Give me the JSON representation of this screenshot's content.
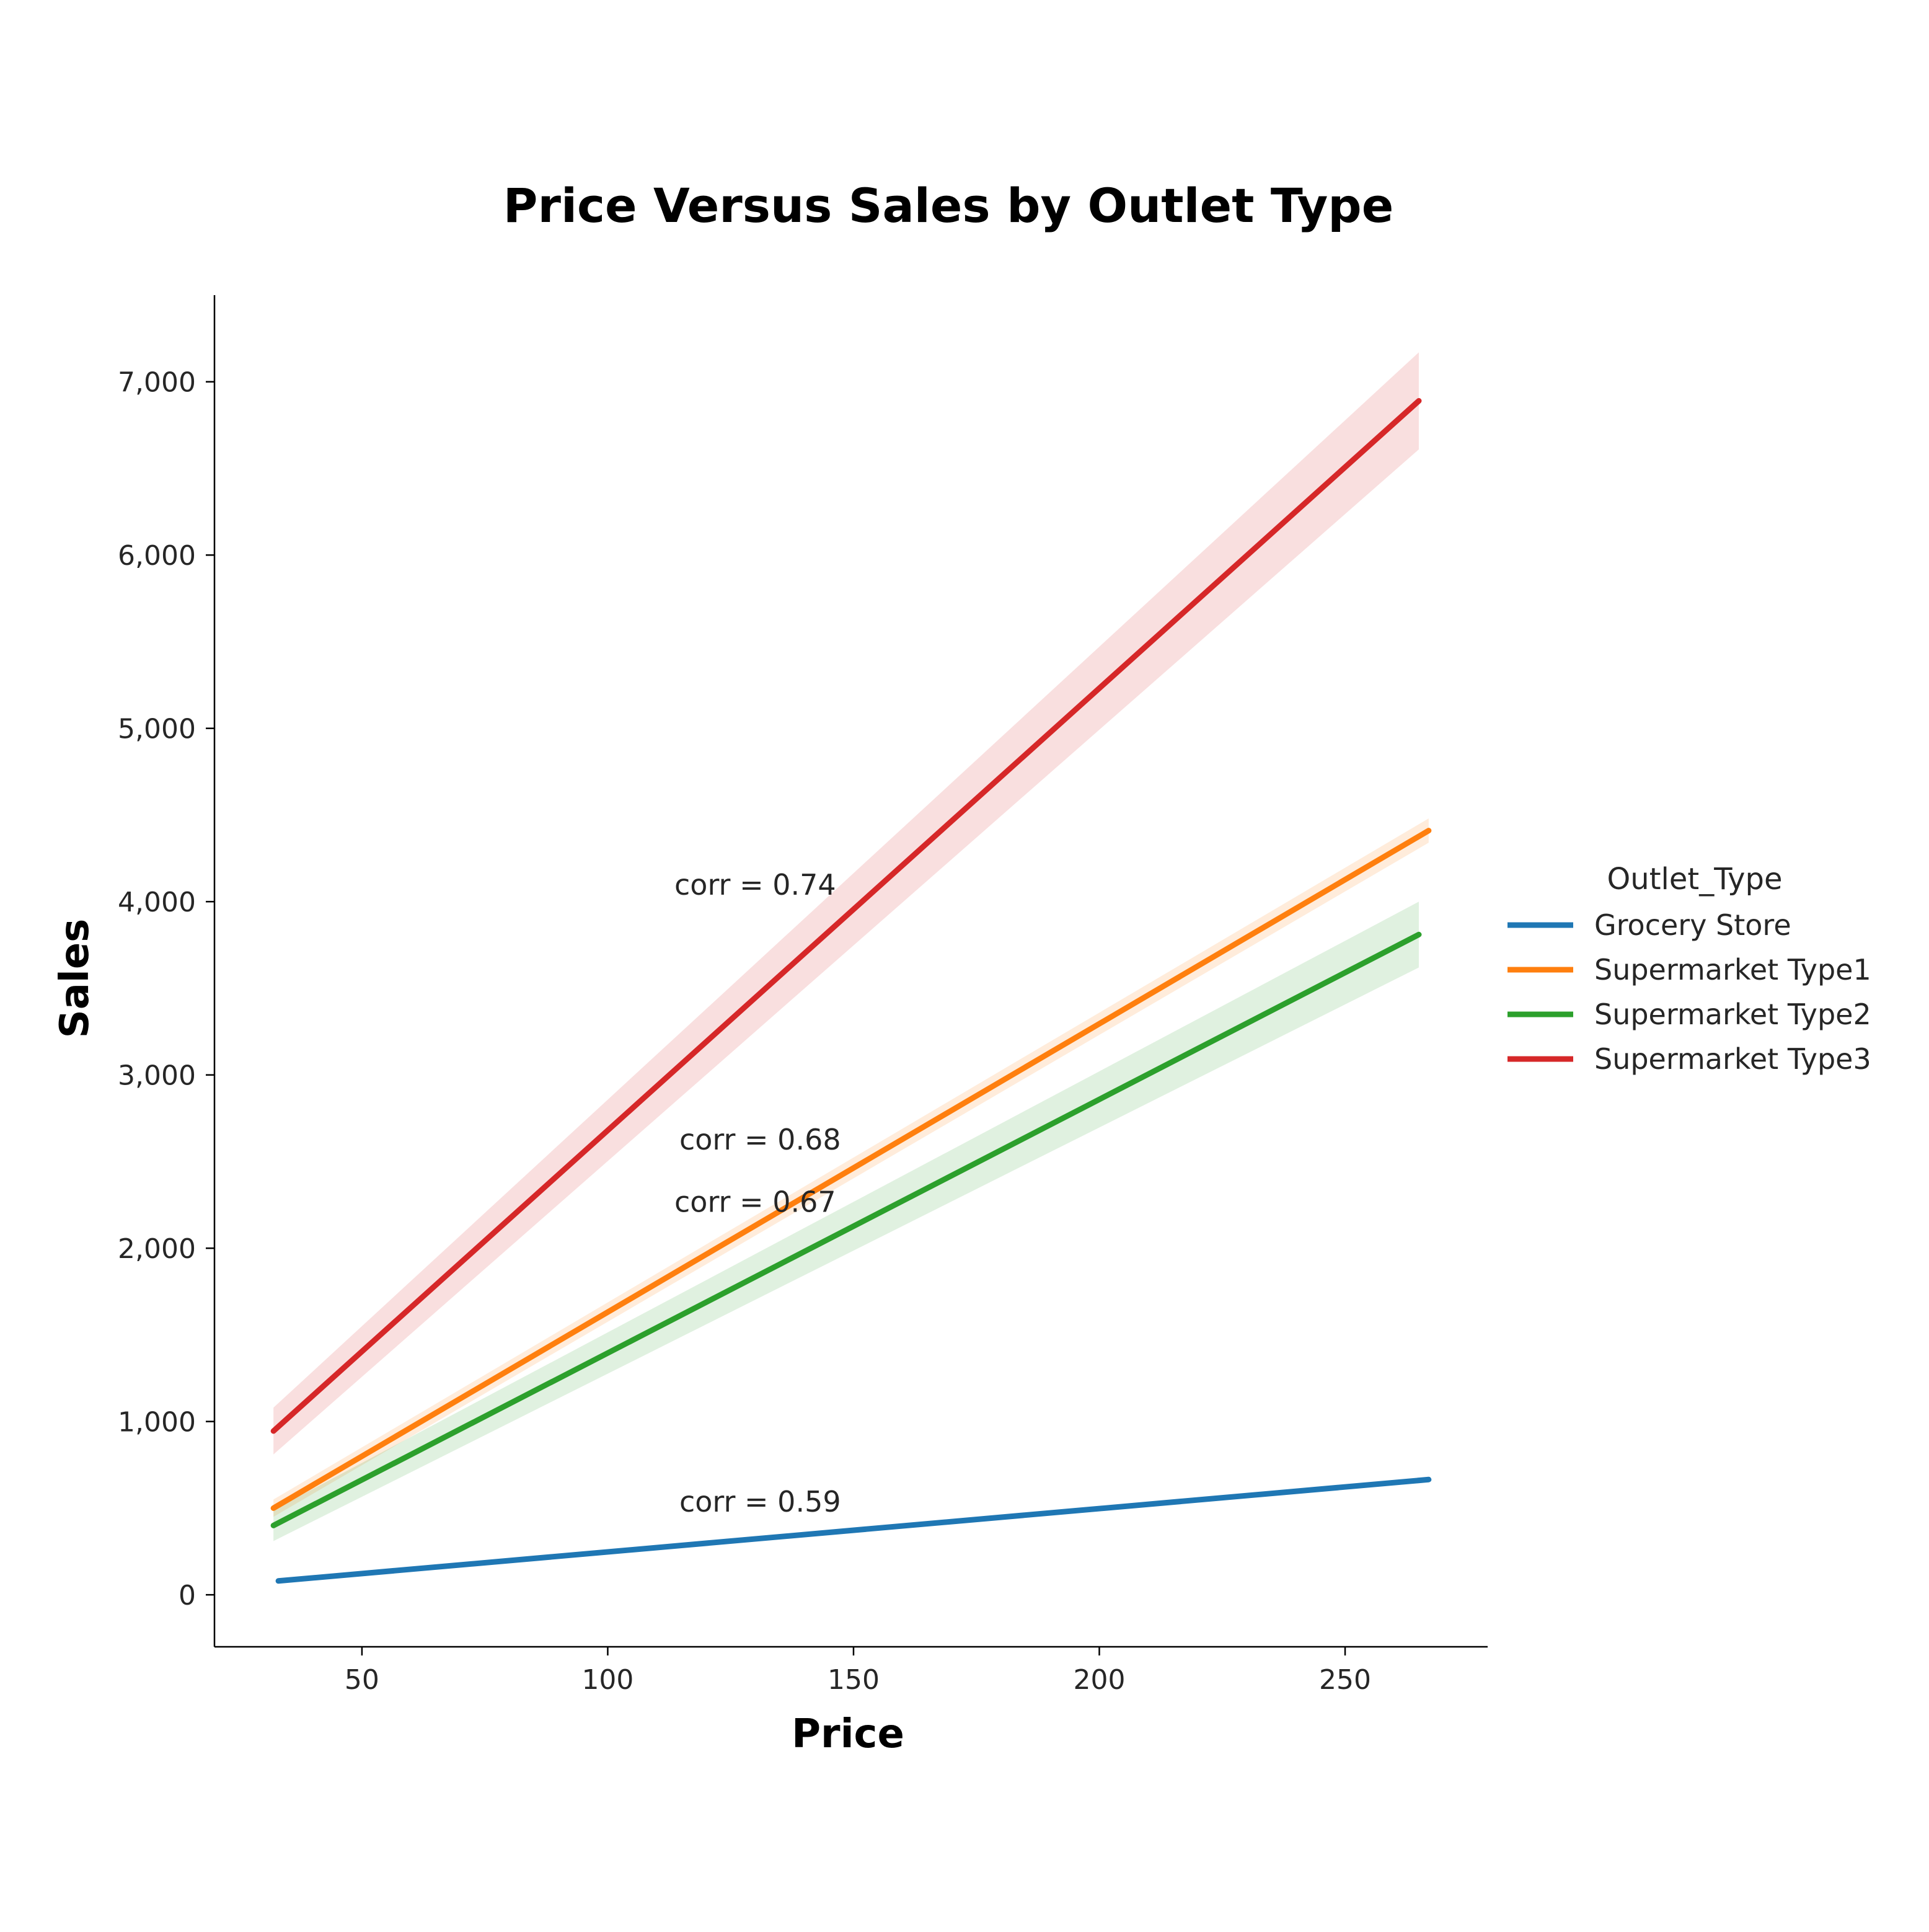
{
  "chart_data": {
    "type": "line",
    "title": "Price Versus Sales by Outlet Type",
    "xlabel": "Price",
    "ylabel": "Sales",
    "xlim": [
      20,
      279
    ],
    "ylim": [
      -300,
      7500
    ],
    "xticks": [
      50,
      100,
      150,
      200,
      250
    ],
    "xtick_labels": [
      "50",
      "100",
      "150",
      "200",
      "250"
    ],
    "yticks": [
      0,
      1000,
      2000,
      3000,
      4000,
      5000,
      6000,
      7000
    ],
    "ytick_labels": [
      "0",
      "1,000",
      "2,000",
      "3,000",
      "4,000",
      "5,000",
      "6,000",
      "7,000"
    ],
    "grid": false,
    "legend": {
      "title": "Outlet_Type",
      "placement": "right"
    },
    "series": [
      {
        "name": "Grocery Store",
        "color": "#1f77b4",
        "x": [
          33,
          267
        ],
        "y": [
          80,
          665
        ],
        "ci_lower": [
          70,
          650
        ],
        "ci_upper": [
          90,
          680
        ],
        "annotation": "corr = 0.59",
        "annotation_pos": {
          "x": 131,
          "y": 480
        }
      },
      {
        "name": "Supermarket Type1",
        "color": "#ff7f0e",
        "x": [
          32,
          267
        ],
        "y": [
          500,
          4410
        ],
        "ci_lower": [
          450,
          4340
        ],
        "ci_upper": [
          550,
          4480
        ],
        "annotation": "corr = 0.68",
        "annotation_pos": {
          "x": 131,
          "y": 2570
        }
      },
      {
        "name": "Supermarket Type2",
        "color": "#2ca02c",
        "x": [
          32,
          265
        ],
        "y": [
          400,
          3810
        ],
        "ci_lower": [
          310,
          3620
        ],
        "ci_upper": [
          490,
          4000
        ],
        "annotation": "corr = 0.67",
        "annotation_pos": {
          "x": 130,
          "y": 2210
        }
      },
      {
        "name": "Supermarket Type3",
        "color": "#d62728",
        "x": [
          32,
          265
        ],
        "y": [
          945,
          6890
        ],
        "ci_lower": [
          810,
          6610
        ],
        "ci_upper": [
          1080,
          7170
        ],
        "annotation": "corr = 0.74",
        "annotation_pos": {
          "x": 130,
          "y": 4040
        }
      }
    ]
  }
}
